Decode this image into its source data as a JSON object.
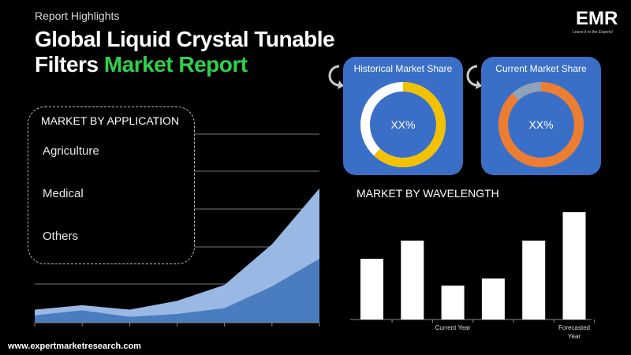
{
  "header": {
    "eyebrow": "Report Highlights",
    "title_line1": "Global Liquid Crystal Tunable",
    "title_line2_white": "Filters ",
    "title_line2_green": "Market Report"
  },
  "logo": {
    "text": "EMR",
    "tagline": "Leave it to the Experts!"
  },
  "application": {
    "title": "MARKET BY APPLICATION",
    "items": [
      "Agriculture",
      "Medical",
      "Others"
    ]
  },
  "cards": [
    {
      "title": "Historical Market Share",
      "value": "XX%",
      "ring_color": "#f2c200",
      "rest_color": "#ffffff",
      "fraction": 0.62
    },
    {
      "title": "Current Market Share",
      "value": "XX%",
      "ring_color": "#ed7d31",
      "rest_color": "#8fa3b8",
      "fraction": 0.88
    }
  ],
  "wavelength": {
    "title": "MARKET BY WAVELENGTH"
  },
  "footer": {
    "url": "www.expertmarketresearch.com"
  },
  "chart_data": [
    {
      "type": "area",
      "x": [
        0,
        1,
        2,
        3,
        4,
        5,
        6
      ],
      "series": [
        {
          "values": [
            18,
            24,
            18,
            30,
            52,
            108,
            185
          ],
          "color": "#9ab8e4"
        },
        {
          "values": [
            10,
            17,
            8,
            12,
            20,
            50,
            88
          ],
          "color": "#4a7cc0"
        }
      ],
      "ylim": [
        0,
        200
      ],
      "grid": true
    },
    {
      "type": "bar",
      "categories": [
        "",
        "",
        "Current Year",
        "",
        "",
        "Forecasted Year"
      ],
      "values": [
        77,
        100,
        43,
        52,
        100,
        136
      ],
      "color": "#ffffff"
    }
  ]
}
